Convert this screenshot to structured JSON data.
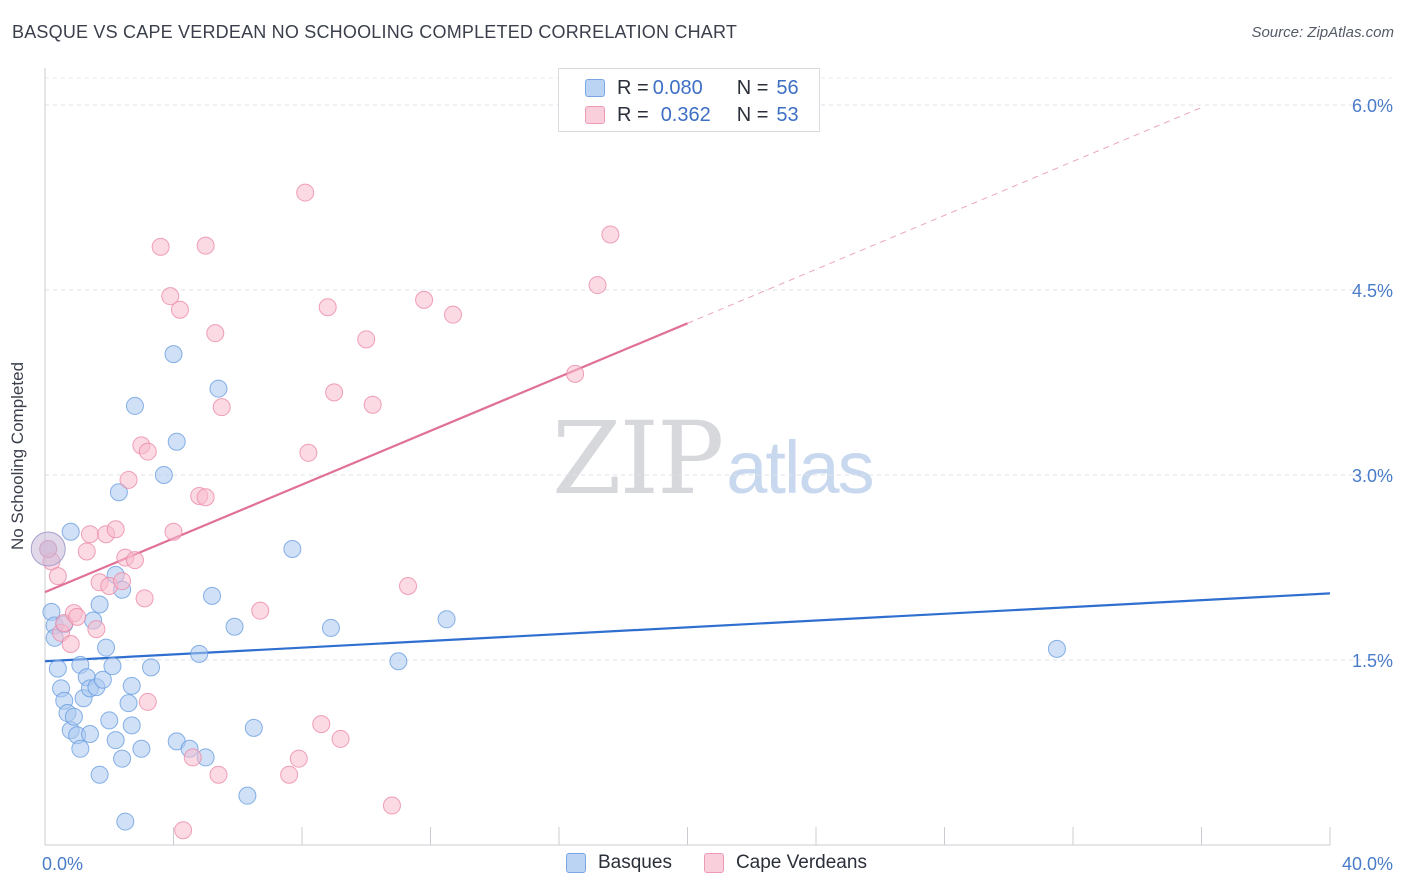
{
  "header": {
    "title": "BASQUE VS CAPE VERDEAN NO SCHOOLING COMPLETED CORRELATION CHART",
    "source": "Source: ZipAtlas.com"
  },
  "watermark": {
    "zip": "ZIP",
    "atlas": "atlas"
  },
  "legend": {
    "rows": [
      {
        "r_label": "R =",
        "r_value": "0.080",
        "n_label": "N =",
        "n_value": "56",
        "color": "#a9c8f0"
      },
      {
        "r_label": "R =",
        "r_value": "0.362",
        "n_label": "N =",
        "n_value": "53",
        "color": "#f7bccd"
      }
    ]
  },
  "bottom_legend": {
    "items": [
      {
        "label": "Basques",
        "color": "#a9c8f0"
      },
      {
        "label": "Cape Verdeans",
        "color": "#f7bccd"
      }
    ]
  },
  "chart_data": {
    "type": "scatter",
    "title": "BASQUE VS CAPE VERDEAN NO SCHOOLING COMPLETED CORRELATION CHART",
    "xlabel": "",
    "ylabel": "No Schooling Completed",
    "xlim": [
      0,
      40
    ],
    "ylim": [
      0,
      6.3
    ],
    "x_tick_labels": [
      {
        "value": 0,
        "label": "0.0%"
      },
      {
        "value": 40,
        "label": "40.0%"
      }
    ],
    "y_tick_labels": [
      {
        "value": 1.5,
        "label": "1.5%"
      },
      {
        "value": 3.0,
        "label": "3.0%"
      },
      {
        "value": 4.5,
        "label": "4.5%"
      },
      {
        "value": 6.0,
        "label": "6.0%"
      }
    ],
    "grid": true,
    "series": [
      {
        "name": "Basques",
        "color": "#6a9ee0",
        "fill": "#a9c8f0",
        "trend": {
          "x0": 0,
          "y0": 1.49,
          "x1": 40,
          "y1": 2.04
        },
        "points": [
          [
            0.2,
            1.89
          ],
          [
            0.3,
            1.78
          ],
          [
            0.3,
            1.68
          ],
          [
            0.4,
            1.43
          ],
          [
            0.5,
            1.27
          ],
          [
            0.6,
            1.17
          ],
          [
            0.6,
            1.79
          ],
          [
            0.7,
            1.07
          ],
          [
            0.8,
            0.93
          ],
          [
            0.8,
            2.54
          ],
          [
            0.9,
            1.04
          ],
          [
            1.0,
            0.89
          ],
          [
            1.1,
            1.46
          ],
          [
            1.1,
            0.78
          ],
          [
            1.2,
            1.19
          ],
          [
            1.3,
            1.36
          ],
          [
            1.4,
            1.27
          ],
          [
            1.4,
            0.9
          ],
          [
            1.5,
            1.82
          ],
          [
            1.6,
            1.28
          ],
          [
            1.7,
            1.95
          ],
          [
            1.7,
            0.57
          ],
          [
            1.8,
            1.34
          ],
          [
            1.9,
            1.6
          ],
          [
            2.0,
            1.01
          ],
          [
            2.1,
            1.45
          ],
          [
            2.2,
            2.19
          ],
          [
            2.2,
            0.85
          ],
          [
            2.3,
            2.86
          ],
          [
            2.4,
            2.07
          ],
          [
            2.4,
            0.7
          ],
          [
            2.5,
            0.19
          ],
          [
            2.6,
            1.15
          ],
          [
            2.7,
            1.29
          ],
          [
            2.7,
            0.97
          ],
          [
            2.8,
            3.56
          ],
          [
            3.0,
            0.78
          ],
          [
            3.3,
            1.44
          ],
          [
            4.0,
            3.98
          ],
          [
            4.1,
            3.27
          ],
          [
            4.1,
            0.84
          ],
          [
            4.5,
            0.78
          ],
          [
            4.8,
            1.55
          ],
          [
            5.0,
            0.71
          ],
          [
            5.2,
            2.02
          ],
          [
            5.4,
            3.7
          ],
          [
            5.9,
            1.77
          ],
          [
            6.3,
            0.4
          ],
          [
            6.5,
            0.95
          ],
          [
            7.7,
            2.4
          ],
          [
            8.9,
            1.76
          ],
          [
            11.0,
            1.49
          ],
          [
            12.5,
            1.83
          ],
          [
            31.5,
            1.59
          ],
          [
            3.7,
            3.0
          ],
          [
            0.1,
            2.4
          ]
        ]
      },
      {
        "name": "Cape Verdeans",
        "color": "#ec8aa8",
        "fill": "#f7bccd",
        "trend": {
          "x0": 0,
          "y0": 2.05,
          "x1": 20,
          "y1": 4.23
        },
        "trend_ext": {
          "x0": 20,
          "y0": 4.23,
          "x1": 36,
          "y1": 5.98
        },
        "points": [
          [
            0.2,
            2.3
          ],
          [
            0.4,
            2.18
          ],
          [
            0.5,
            1.72
          ],
          [
            0.6,
            1.8
          ],
          [
            0.8,
            1.63
          ],
          [
            0.9,
            1.88
          ],
          [
            1.0,
            1.85
          ],
          [
            1.3,
            2.38
          ],
          [
            1.4,
            2.52
          ],
          [
            1.6,
            1.75
          ],
          [
            1.7,
            2.13
          ],
          [
            1.9,
            2.52
          ],
          [
            2.0,
            2.1
          ],
          [
            2.2,
            2.56
          ],
          [
            2.4,
            2.14
          ],
          [
            2.5,
            2.33
          ],
          [
            2.6,
            2.96
          ],
          [
            2.8,
            2.31
          ],
          [
            3.0,
            3.24
          ],
          [
            3.1,
            2.0
          ],
          [
            3.2,
            3.19
          ],
          [
            3.2,
            1.16
          ],
          [
            3.6,
            4.85
          ],
          [
            3.9,
            4.45
          ],
          [
            4.0,
            2.54
          ],
          [
            4.2,
            4.34
          ],
          [
            4.3,
            0.12
          ],
          [
            4.6,
            0.71
          ],
          [
            4.8,
            2.83
          ],
          [
            5.0,
            2.82
          ],
          [
            5.0,
            4.86
          ],
          [
            5.3,
            4.15
          ],
          [
            5.4,
            0.57
          ],
          [
            5.5,
            3.55
          ],
          [
            6.7,
            1.9
          ],
          [
            7.6,
            0.57
          ],
          [
            7.9,
            0.7
          ],
          [
            8.1,
            5.29
          ],
          [
            8.2,
            3.18
          ],
          [
            8.6,
            0.98
          ],
          [
            8.8,
            4.36
          ],
          [
            9.0,
            3.67
          ],
          [
            9.2,
            0.86
          ],
          [
            10.0,
            4.1
          ],
          [
            10.2,
            3.57
          ],
          [
            10.8,
            0.32
          ],
          [
            11.3,
            2.1
          ],
          [
            11.8,
            4.42
          ],
          [
            12.7,
            4.3
          ],
          [
            16.5,
            3.82
          ],
          [
            17.2,
            4.54
          ],
          [
            17.6,
            4.95
          ],
          [
            0.1,
            2.4
          ]
        ]
      }
    ]
  }
}
